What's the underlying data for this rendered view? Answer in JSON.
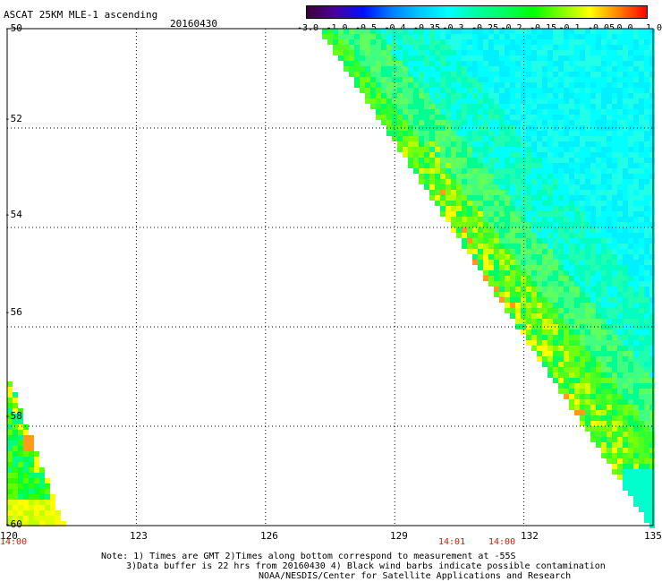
{
  "title": "ASCAT 25KM MLE-1 ascending",
  "date": "20160430",
  "colorbar": {
    "colors": [
      "#3a0035",
      "#4a00a0",
      "#0010ff",
      "#0080ff",
      "#00c8ff",
      "#00ffff",
      "#00ffa0",
      "#00ff60",
      "#00ff00",
      "#80ff00",
      "#ffff00",
      "#ff8000",
      "#ff0000"
    ],
    "labels": [
      "-3.0",
      "-1.0",
      "-0.5",
      "-0.4",
      "-0.35",
      "-0.3",
      "-0.25",
      "-0.2",
      "-0.15",
      "-0.1",
      "-0.05",
      "0.0",
      "1.0"
    ]
  },
  "axes": {
    "lat_labels": [
      "-50",
      "-52",
      "-54",
      "-56",
      "-58",
      "-60"
    ],
    "lon_labels": [
      "120",
      "123",
      "126",
      "129",
      "132",
      "135"
    ],
    "lat_range": [
      -60,
      -50
    ],
    "lon_range": [
      120,
      135
    ]
  },
  "time_labels": [
    "14:00",
    "14:01",
    "14:00"
  ],
  "notes": [
    "Note: 1) Times are GMT 2)Times along bottom correspond to measurement at -55S",
    "3)Data buffer is 22 hrs from 20160430 4) Black wind barbs indicate possible contamination",
    "NOAA/NESDIS/Center for Satellite Applications and Research"
  ],
  "chart_data": {
    "type": "heatmap",
    "title": "ASCAT 25KM MLE-1 ascending",
    "variable": "MLE-1",
    "scale": [
      "-3.0",
      "-1.0",
      "-0.5",
      "-0.4",
      "-0.35",
      "-0.3",
      "-0.25",
      "-0.2",
      "-0.15",
      "-0.1",
      "-0.05",
      "0.0",
      "1.0"
    ],
    "xlim": [
      120,
      135
    ],
    "ylim": [
      -60,
      -50
    ],
    "swaths": [
      {
        "region": "west",
        "lon_range": [
          120.0,
          121.5
        ],
        "lat_range": [
          -60.0,
          -57.0
        ],
        "dominant_values": "-0.2 to -0.05"
      },
      {
        "region": "east",
        "lon_range": [
          127.0,
          135.0
        ],
        "lat_range": [
          -60.0,
          -50.0
        ],
        "dominant_values": "-0.3 to -0.15"
      }
    ]
  }
}
